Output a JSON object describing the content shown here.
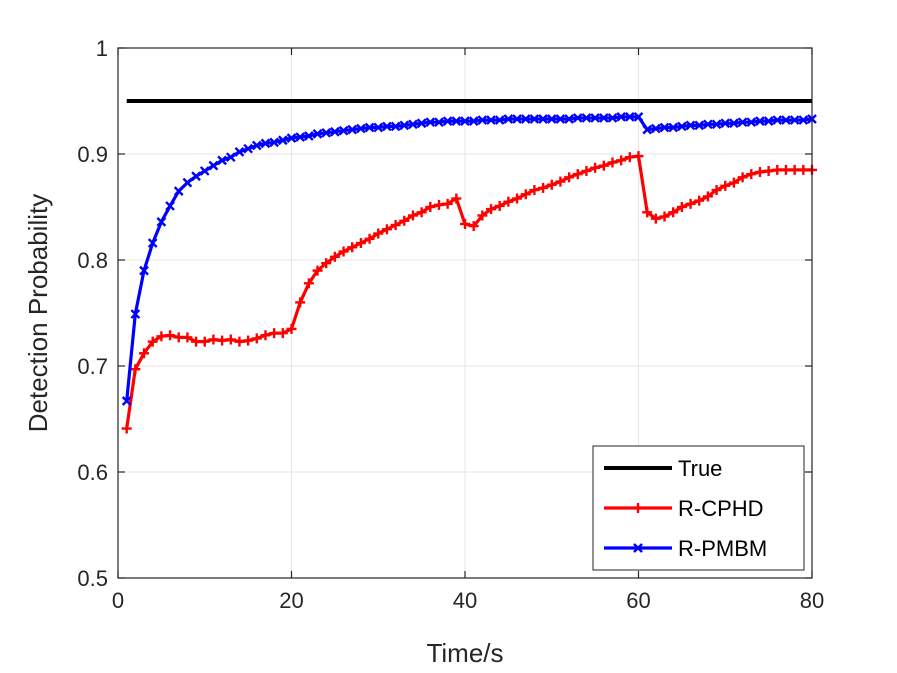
{
  "chart_data": {
    "type": "line",
    "xlabel": "Time/s",
    "ylabel": "Detection Probability",
    "xlim": [
      0,
      80
    ],
    "ylim": [
      0.5,
      1
    ],
    "xticks": [
      0,
      20,
      40,
      60,
      80
    ],
    "yticks": [
      0.5,
      0.6,
      0.7,
      0.8,
      0.9,
      1
    ],
    "xtick_labels": [
      "0",
      "20",
      "40",
      "60",
      "80"
    ],
    "ytick_labels": [
      "0.5",
      "0.6",
      "0.7",
      "0.8",
      "0.9",
      "1"
    ],
    "grid": true,
    "legend_position": "bottom-right",
    "series": [
      {
        "name": "True",
        "color": "#000000",
        "marker": "none",
        "x": [
          1,
          80
        ],
        "y": [
          0.95,
          0.95
        ]
      },
      {
        "name": "R-CPHD",
        "color": "#ff0000",
        "marker": "plus",
        "x": [
          1,
          2,
          3,
          4,
          5,
          6,
          7,
          8,
          9,
          10,
          11,
          12,
          13,
          14,
          15,
          16,
          17,
          18,
          19,
          20,
          21,
          22,
          23,
          24,
          25,
          26,
          27,
          28,
          29,
          30,
          31,
          32,
          33,
          34,
          35,
          36,
          37,
          38,
          39,
          40,
          41,
          42,
          43,
          44,
          45,
          46,
          47,
          48,
          49,
          50,
          51,
          52,
          53,
          54,
          55,
          56,
          57,
          58,
          59,
          60,
          61,
          62,
          63,
          64,
          65,
          66,
          67,
          68,
          69,
          70,
          71,
          72,
          73,
          74,
          75,
          76,
          77,
          78,
          79,
          80
        ],
        "y": [
          0.641,
          0.697,
          0.712,
          0.723,
          0.728,
          0.729,
          0.727,
          0.727,
          0.723,
          0.723,
          0.725,
          0.724,
          0.725,
          0.723,
          0.724,
          0.726,
          0.729,
          0.731,
          0.731,
          0.735,
          0.76,
          0.778,
          0.79,
          0.797,
          0.803,
          0.808,
          0.812,
          0.816,
          0.82,
          0.825,
          0.829,
          0.833,
          0.837,
          0.842,
          0.845,
          0.85,
          0.852,
          0.853,
          0.858,
          0.834,
          0.832,
          0.842,
          0.848,
          0.851,
          0.855,
          0.858,
          0.862,
          0.866,
          0.868,
          0.871,
          0.874,
          0.878,
          0.881,
          0.884,
          0.887,
          0.889,
          0.892,
          0.894,
          0.897,
          0.898,
          0.845,
          0.839,
          0.841,
          0.845,
          0.85,
          0.853,
          0.856,
          0.86,
          0.866,
          0.87,
          0.873,
          0.878,
          0.881,
          0.883,
          0.884,
          0.885,
          0.885,
          0.885,
          0.885,
          0.885
        ]
      },
      {
        "name": "R-PMBM",
        "color": "#0000ff",
        "marker": "x",
        "x": [
          1,
          2,
          3,
          4,
          5,
          6,
          7,
          8,
          9,
          10,
          11,
          12,
          13,
          14,
          15,
          16,
          17,
          18,
          19,
          20,
          21,
          22,
          23,
          24,
          25,
          26,
          27,
          28,
          29,
          30,
          31,
          32,
          33,
          34,
          35,
          36,
          37,
          38,
          39,
          40,
          41,
          42,
          43,
          44,
          45,
          46,
          47,
          48,
          49,
          50,
          51,
          52,
          53,
          54,
          55,
          56,
          57,
          58,
          59,
          60,
          61,
          62,
          63,
          64,
          65,
          66,
          67,
          68,
          69,
          70,
          71,
          72,
          73,
          74,
          75,
          76,
          77,
          78,
          79,
          80
        ],
        "y": [
          0.667,
          0.749,
          0.79,
          0.816,
          0.836,
          0.851,
          0.865,
          0.873,
          0.879,
          0.884,
          0.889,
          0.894,
          0.897,
          0.902,
          0.905,
          0.908,
          0.91,
          0.911,
          0.913,
          0.915,
          0.916,
          0.917,
          0.919,
          0.92,
          0.921,
          0.922,
          0.923,
          0.924,
          0.925,
          0.925,
          0.926,
          0.926,
          0.927,
          0.928,
          0.929,
          0.93,
          0.93,
          0.931,
          0.931,
          0.931,
          0.931,
          0.932,
          0.932,
          0.932,
          0.933,
          0.933,
          0.933,
          0.933,
          0.933,
          0.933,
          0.933,
          0.933,
          0.934,
          0.934,
          0.934,
          0.934,
          0.934,
          0.935,
          0.935,
          0.935,
          0.923,
          0.924,
          0.925,
          0.925,
          0.926,
          0.927,
          0.927,
          0.928,
          0.928,
          0.929,
          0.929,
          0.93,
          0.93,
          0.931,
          0.931,
          0.932,
          0.932,
          0.932,
          0.932,
          0.933
        ]
      }
    ]
  }
}
